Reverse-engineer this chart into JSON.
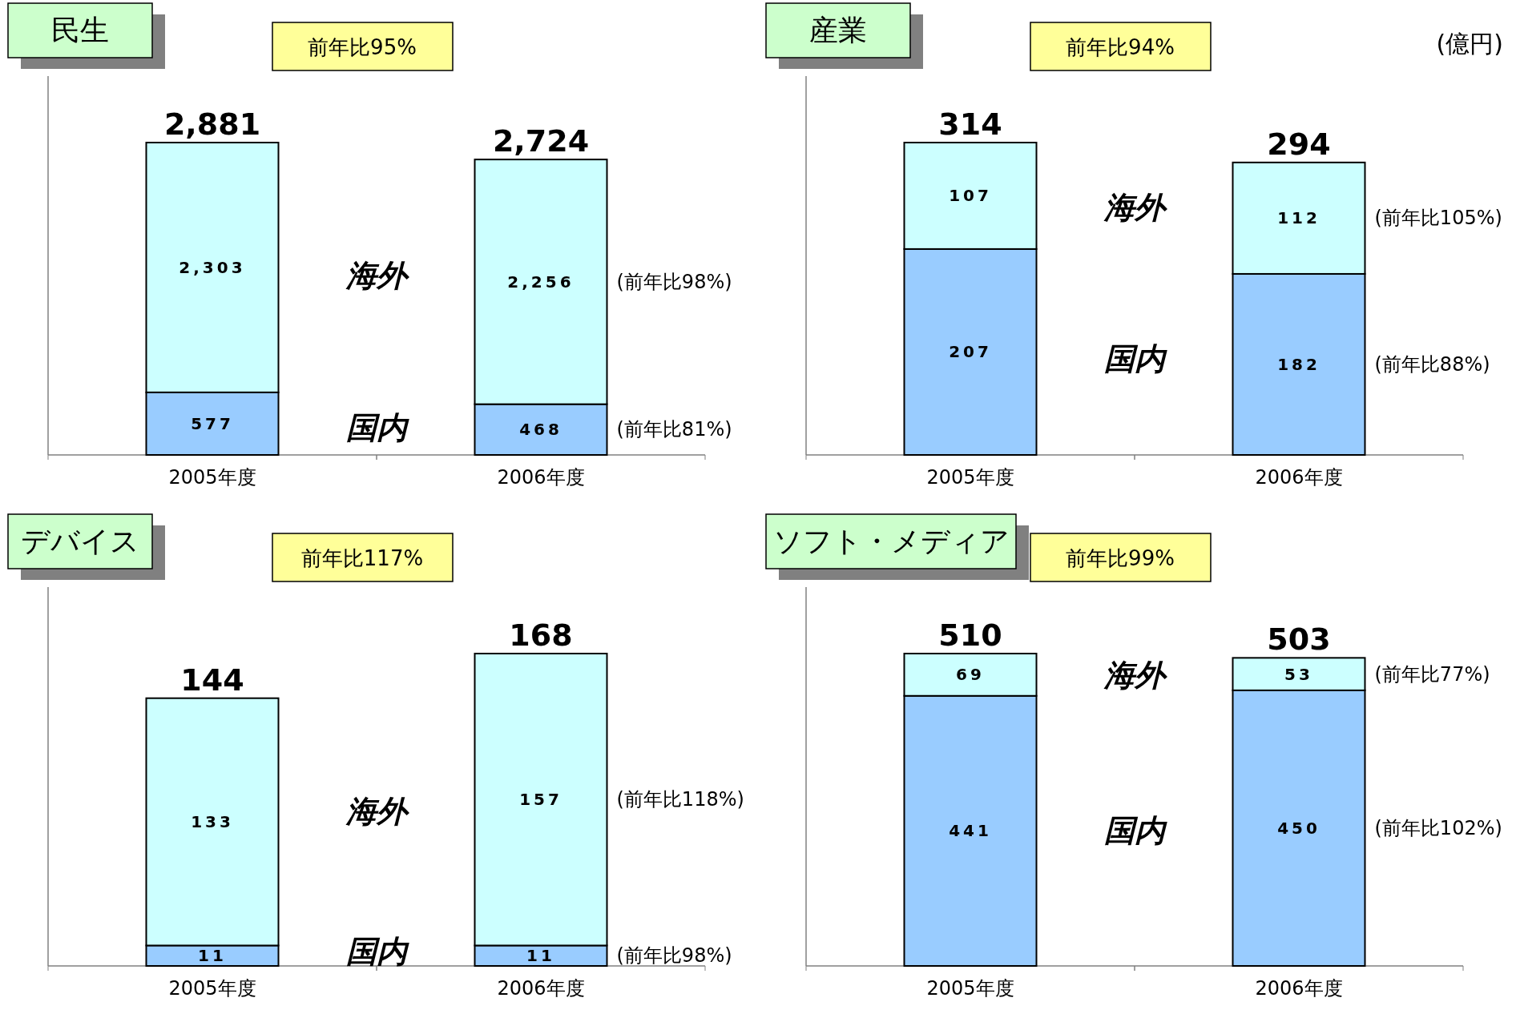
{
  "chart_data": [
    {
      "type": "bar",
      "stacked": true,
      "title": "民生",
      "categories": [
        "2005年度",
        "2006年度"
      ],
      "legend": false,
      "series": [
        {
          "name": "国内",
          "color": "#99ccff",
          "values": [
            577,
            468
          ],
          "value_labels": [
            "577",
            "468"
          ]
        },
        {
          "name": "海外",
          "color": "#ccffff",
          "values": [
            2303,
            2256
          ],
          "value_labels": [
            "2,303",
            "2,256"
          ]
        }
      ],
      "totals": [
        "2,881",
        "2,724"
      ],
      "annotations": [
        "前年比95%",
        "(前年比98%)",
        "(前年比81%)"
      ]
    },
    {
      "type": "bar",
      "stacked": true,
      "title": "産業",
      "categories": [
        "2005年度",
        "2006年度"
      ],
      "legend": false,
      "series": [
        {
          "name": "国内",
          "color": "#99ccff",
          "values": [
            207,
            182
          ],
          "value_labels": [
            "207",
            "182"
          ]
        },
        {
          "name": "海外",
          "color": "#ccffff",
          "values": [
            107,
            112
          ],
          "value_labels": [
            "107",
            "112"
          ]
        }
      ],
      "totals": [
        "314",
        "294"
      ],
      "ylabel": "(億円)",
      "annotations": [
        "前年比94%",
        "(前年比105%)",
        "(前年比88%)"
      ]
    },
    {
      "type": "bar",
      "stacked": true,
      "title": "デバイス",
      "categories": [
        "2005年度",
        "2006年度"
      ],
      "legend": false,
      "series": [
        {
          "name": "国内",
          "color": "#99ccff",
          "values": [
            11,
            11
          ],
          "value_labels": [
            "11",
            "11"
          ]
        },
        {
          "name": "海外",
          "color": "#ccffff",
          "values": [
            133,
            157
          ],
          "value_labels": [
            "133",
            "157"
          ]
        }
      ],
      "totals": [
        "144",
        "168"
      ],
      "annotations": [
        "前年比117%",
        "(前年比118%)",
        "(前年比98%)"
      ]
    },
    {
      "type": "bar",
      "stacked": true,
      "title": "ソフト・メディア",
      "categories": [
        "2005年度",
        "2006年度"
      ],
      "legend": false,
      "series": [
        {
          "name": "国内",
          "color": "#99ccff",
          "values": [
            441,
            450
          ],
          "value_labels": [
            "441",
            "450"
          ]
        },
        {
          "name": "海外",
          "color": "#ccffff",
          "values": [
            69,
            53
          ],
          "value_labels": [
            "69",
            "53"
          ]
        }
      ],
      "totals": [
        "510",
        "503"
      ],
      "annotations": [
        "前年比99%",
        "(前年比77%)",
        "(前年比102%)"
      ]
    }
  ]
}
